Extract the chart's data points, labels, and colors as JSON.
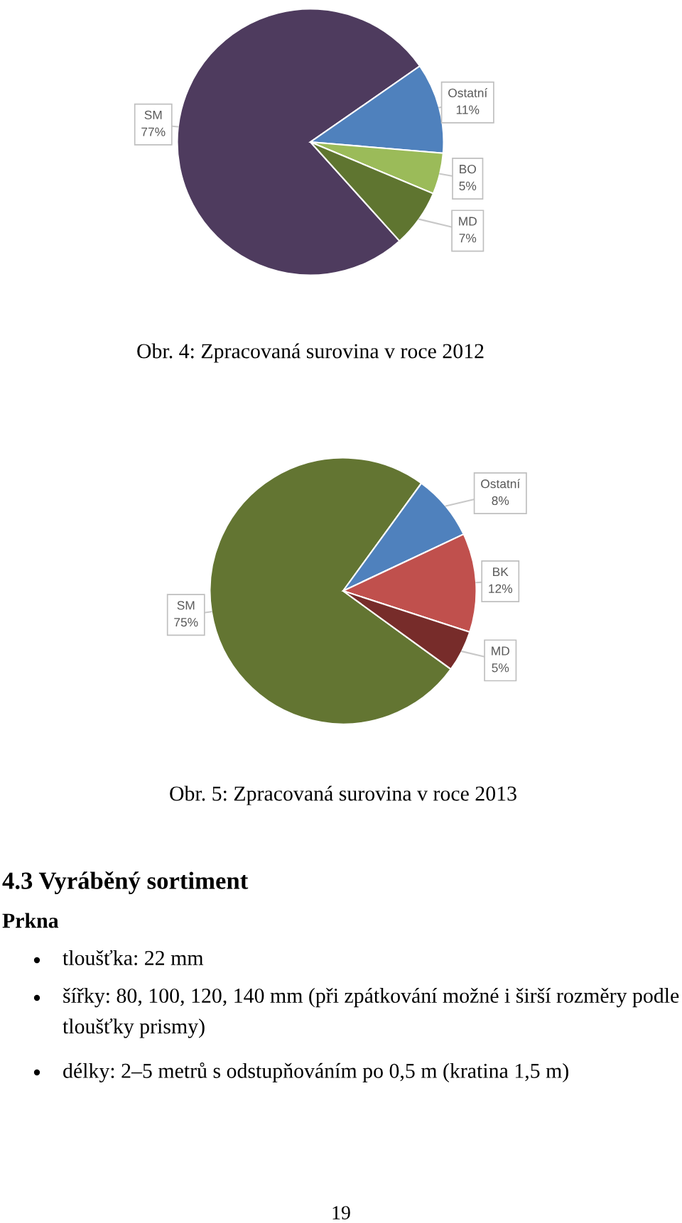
{
  "chart_data": [
    {
      "type": "pie",
      "title": "Obr. 4: Zpracovaná surovina v roce 2012",
      "categories": [
        "SM",
        "Ostatní",
        "BO",
        "MD"
      ],
      "values": [
        77,
        11,
        5,
        7
      ],
      "value_labels": [
        "77%",
        "11%",
        "5%",
        "7%"
      ],
      "colors": [
        "#4e3b5e",
        "#4f81bd",
        "#9bbb59",
        "#5f7530"
      ]
    },
    {
      "type": "pie",
      "title": "Obr. 5: Zpracovaná surovina v roce 2013",
      "categories": [
        "SM",
        "Ostatní",
        "BK",
        "MD"
      ],
      "values": [
        75,
        8,
        12,
        5
      ],
      "value_labels": [
        "75%",
        "8%",
        "12%",
        "5%"
      ],
      "colors": [
        "#637532",
        "#4f81bd",
        "#c0504d",
        "#772c2a"
      ],
      "annotations": [
        "4.3 Vyráběný sortiment",
        "Prkna",
        "tloušťka: 22 mm",
        "šířky: 80, 100, 120, 140 mm (při zpátkování možné i širší rozměry podle\ntloušťky prismy)",
        "délky: 2–5 metrů s odstupňováním po 0,5 m (kratina 1,5 m)",
        "19"
      ]
    }
  ]
}
